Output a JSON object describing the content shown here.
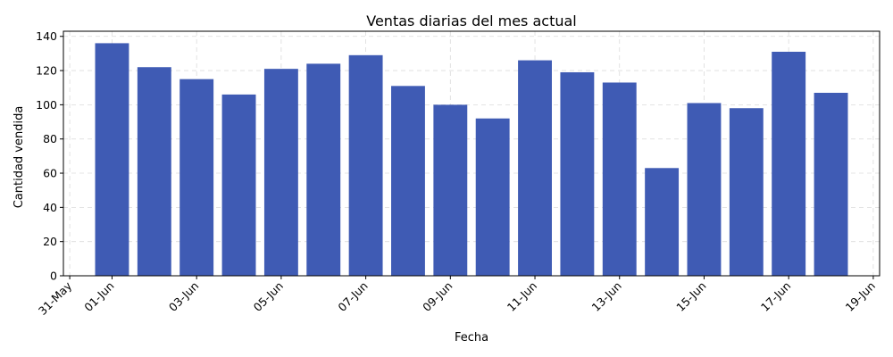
{
  "chart_data": {
    "type": "bar",
    "title": "Ventas diarias del mes actual",
    "xlabel": "Fecha",
    "ylabel": "Cantidad vendida",
    "x": [
      "2024-06-01",
      "2024-06-02",
      "2024-06-03",
      "2024-06-04",
      "2024-06-05",
      "2024-06-06",
      "2024-06-07",
      "2024-06-08",
      "2024-06-09",
      "2024-06-10",
      "2024-06-11",
      "2024-06-12",
      "2024-06-13",
      "2024-06-14",
      "2024-06-15",
      "2024-06-16",
      "2024-06-17",
      "2024-06-18"
    ],
    "values": [
      136,
      122,
      115,
      106,
      121,
      124,
      129,
      111,
      100,
      92,
      126,
      119,
      113,
      63,
      101,
      98,
      131,
      107
    ],
    "xlim": [
      "2024-05-31",
      "2024-06-19"
    ],
    "ylim": [
      0,
      143
    ],
    "x_ticks": [
      "31-May",
      "01-Jun",
      "03-Jun",
      "05-Jun",
      "07-Jun",
      "09-Jun",
      "11-Jun",
      "13-Jun",
      "15-Jun",
      "17-Jun",
      "19-Jun"
    ],
    "x_tick_dates": [
      "2024-05-31",
      "2024-06-01",
      "2024-06-03",
      "2024-06-05",
      "2024-06-07",
      "2024-06-09",
      "2024-06-11",
      "2024-06-13",
      "2024-06-15",
      "2024-06-17",
      "2024-06-19"
    ],
    "y_ticks": [
      0,
      20,
      40,
      60,
      80,
      100,
      120,
      140
    ],
    "grid": true,
    "bar_color": "#3f5bb4"
  }
}
